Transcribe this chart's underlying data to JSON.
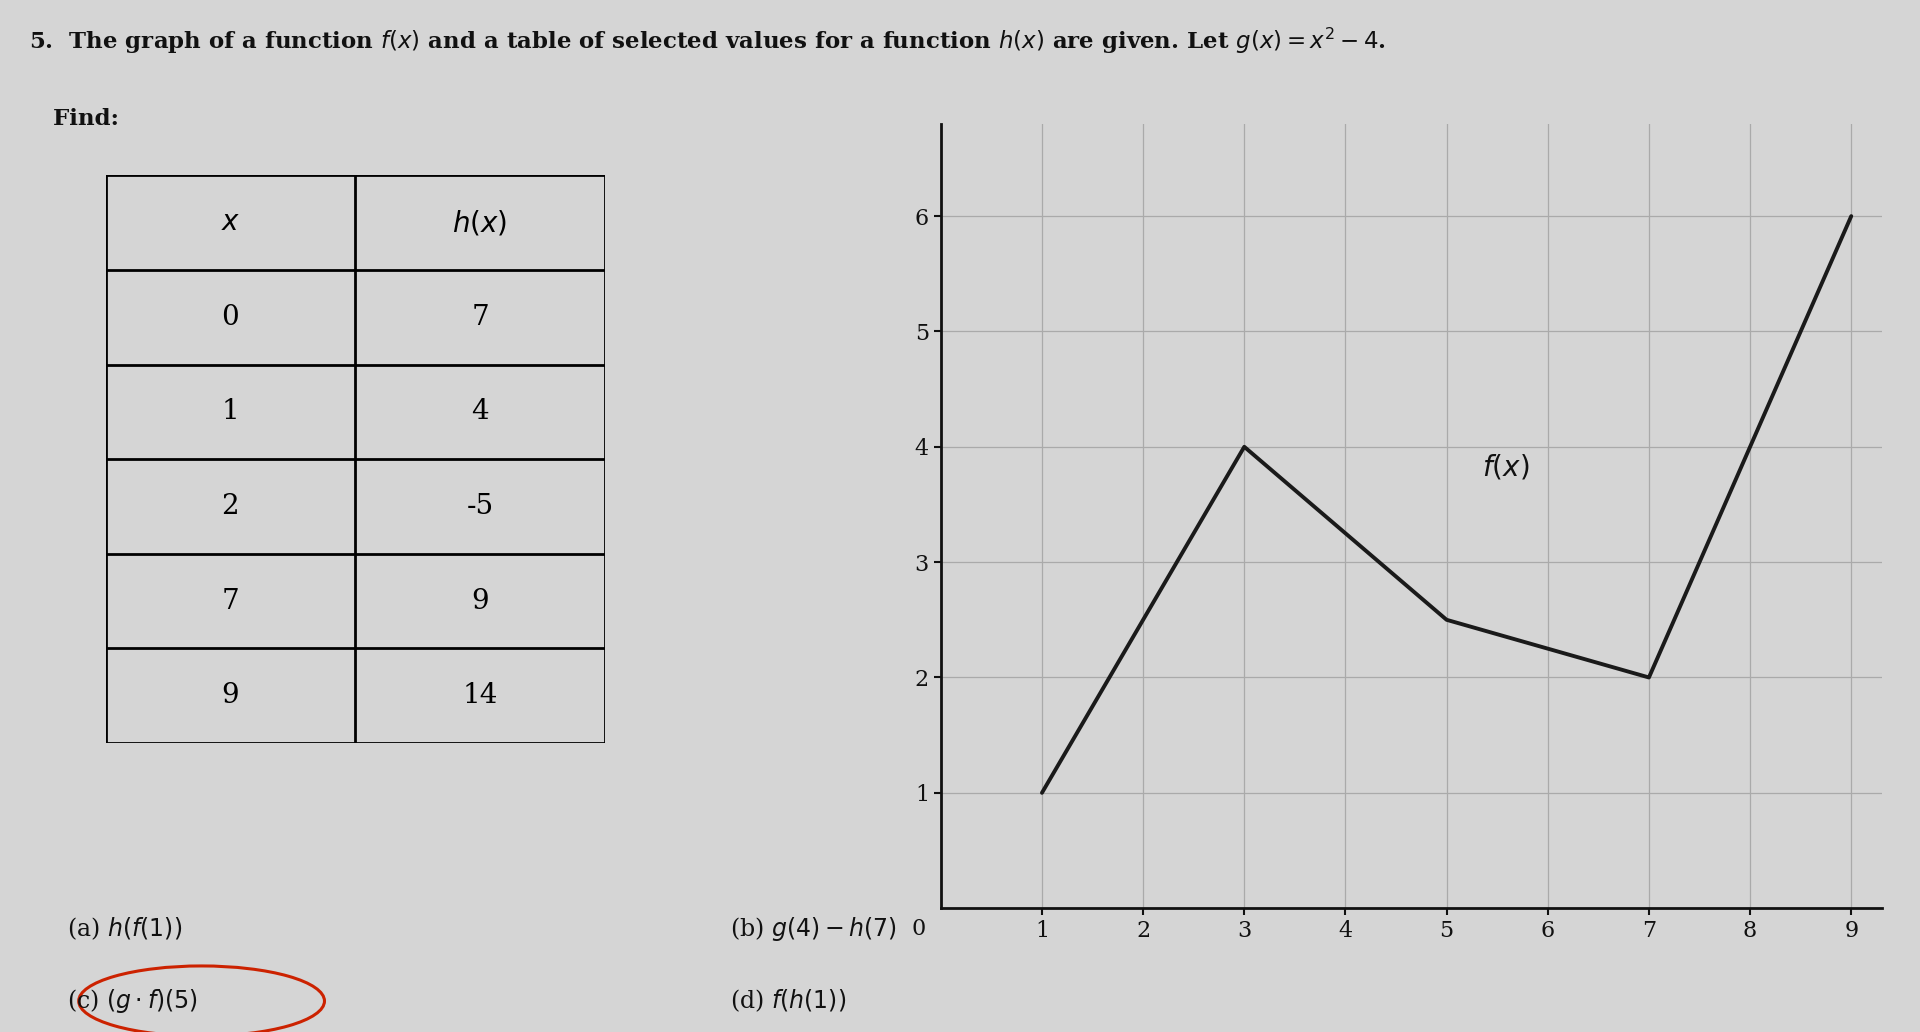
{
  "background_color": "#d5d5d5",
  "title_line1": "5.  The graph of a function $f(x)$ and a table of selected values for a function $h(x)$ are given. Let $g(x) = x^2 - 4$.",
  "title_line2": "   Find:",
  "table_x_vals": [
    "0",
    "1",
    "2",
    "7",
    "9"
  ],
  "table_hx_vals": [
    "7",
    "4",
    "-5",
    "9",
    "14"
  ],
  "fx_x": [
    1,
    3,
    5,
    7,
    9
  ],
  "fx_y": [
    1,
    4,
    2.5,
    2,
    6
  ],
  "graph_xlim": [
    0,
    9.3
  ],
  "graph_ylim": [
    0,
    6.8
  ],
  "graph_xticks": [
    1,
    2,
    3,
    4,
    5,
    6,
    7,
    8,
    9
  ],
  "graph_yticks": [
    1,
    2,
    3,
    4,
    5,
    6
  ],
  "line_color": "#1a1a1a",
  "grid_color": "#aaaaaa",
  "text_color": "#111111",
  "circle_color": "#cc2200",
  "part_a": "(a) $h(f(1))$",
  "part_b": "(b) $g(4) - h(7)$",
  "part_c_label": "(c) $(g \\cdot f)(5)$",
  "part_d": "(d) $f(h(1))$"
}
